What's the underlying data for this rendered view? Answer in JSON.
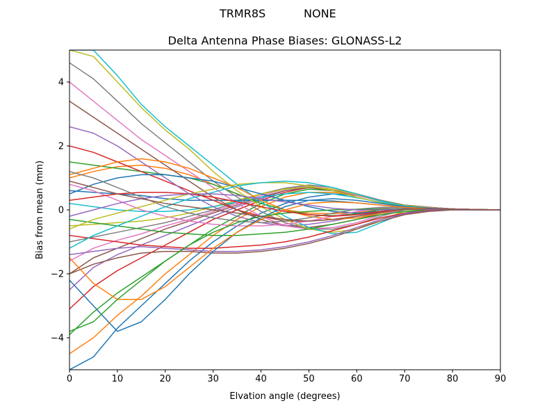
{
  "header": {
    "station": "TRMR8S",
    "radome": "NONE"
  },
  "chart_data": {
    "type": "line",
    "title": "Delta Antenna Phase Biases: GLONASS-L2",
    "xlabel": "Elvation angle (degrees)",
    "ylabel": "Bias from mean (mm)",
    "xlim": [
      0,
      90
    ],
    "ylim": [
      -5,
      5
    ],
    "xticks": [
      "0",
      "10",
      "20",
      "30",
      "40",
      "50",
      "60",
      "70",
      "80",
      "90"
    ],
    "yticks": [
      "−4",
      "−2",
      "0",
      "2",
      "4"
    ],
    "grid": false,
    "legend": "none",
    "colors": [
      "#1f77b4",
      "#ff7f0e",
      "#2ca02c",
      "#d62728",
      "#9467bd",
      "#8c564b",
      "#e377c2",
      "#7f7f7f",
      "#bcbd22",
      "#17becf"
    ],
    "x": [
      0,
      5,
      10,
      15,
      20,
      25,
      30,
      35,
      40,
      45,
      50,
      55,
      60,
      65,
      70,
      75,
      80,
      85,
      90
    ],
    "series": [
      {
        "values": [
          -5.0,
          -4.6,
          -3.7,
          -3.0,
          -2.3,
          -1.6,
          -1.0,
          -0.5,
          -0.1,
          0.2,
          0.4,
          0.5,
          0.45,
          0.3,
          0.15,
          0.08,
          0.03,
          0.01,
          0.0
        ]
      },
      {
        "values": [
          -4.5,
          -4.0,
          -3.3,
          -2.7,
          -2.0,
          -1.4,
          -0.8,
          -0.3,
          0.1,
          0.4,
          0.55,
          0.55,
          0.45,
          0.3,
          0.15,
          0.08,
          0.03,
          0.01,
          0.0
        ]
      },
      {
        "values": [
          -3.9,
          -3.2,
          -2.6,
          -2.1,
          -1.6,
          -1.1,
          -0.6,
          -0.2,
          0.2,
          0.5,
          0.65,
          0.6,
          0.5,
          0.3,
          0.15,
          0.08,
          0.03,
          0.01,
          0.0
        ]
      },
      {
        "values": [
          -3.1,
          -2.4,
          -1.9,
          -1.5,
          -1.1,
          -0.7,
          -0.3,
          0.0,
          0.3,
          0.55,
          0.7,
          0.65,
          0.5,
          0.3,
          0.15,
          0.08,
          0.03,
          0.01,
          0.0
        ]
      },
      {
        "values": [
          -2.5,
          -1.8,
          -1.4,
          -1.1,
          -0.8,
          -0.5,
          -0.2,
          0.1,
          0.35,
          0.6,
          0.7,
          0.6,
          0.45,
          0.28,
          0.14,
          0.07,
          0.03,
          0.01,
          0.0
        ]
      },
      {
        "values": [
          -2.0,
          -1.5,
          -1.2,
          -0.9,
          -0.6,
          -0.35,
          -0.1,
          0.15,
          0.4,
          0.6,
          0.7,
          0.6,
          0.45,
          0.28,
          0.14,
          0.07,
          0.03,
          0.01,
          0.0
        ]
      },
      {
        "values": [
          -1.6,
          -1.2,
          -0.95,
          -0.75,
          -0.5,
          -0.3,
          -0.05,
          0.2,
          0.45,
          0.65,
          0.75,
          0.65,
          0.45,
          0.28,
          0.14,
          0.07,
          0.03,
          0.01,
          0.0
        ]
      },
      {
        "values": [
          -1.0,
          -0.85,
          -0.7,
          -0.55,
          -0.4,
          -0.2,
          0.0,
          0.25,
          0.5,
          0.68,
          0.78,
          0.7,
          0.5,
          0.3,
          0.15,
          0.07,
          0.03,
          0.01,
          0.0
        ]
      },
      {
        "values": [
          -0.5,
          -0.45,
          -0.4,
          -0.35,
          -0.25,
          -0.1,
          0.1,
          0.3,
          0.5,
          0.65,
          0.72,
          0.65,
          0.48,
          0.28,
          0.14,
          0.07,
          0.03,
          0.01,
          0.0
        ]
      },
      {
        "values": [
          0.2,
          0.1,
          0.0,
          -0.05,
          -0.05,
          0.0,
          0.1,
          0.25,
          0.4,
          0.5,
          0.55,
          0.5,
          0.38,
          0.24,
          0.12,
          0.06,
          0.03,
          0.01,
          0.0
        ]
      },
      {
        "values": [
          0.6,
          0.55,
          0.5,
          0.45,
          0.35,
          0.3,
          0.3,
          0.3,
          0.3,
          0.3,
          0.3,
          0.28,
          0.22,
          0.15,
          0.08,
          0.04,
          0.02,
          0.01,
          0.0
        ]
      },
      {
        "values": [
          1.0,
          1.2,
          1.35,
          1.4,
          1.3,
          1.1,
          0.8,
          0.5,
          0.2,
          0.0,
          -0.1,
          -0.12,
          -0.08,
          0.0,
          0.05,
          0.05,
          0.03,
          0.01,
          0.0
        ]
      },
      {
        "values": [
          1.5,
          1.4,
          1.3,
          1.2,
          1.1,
          1.0,
          0.8,
          0.5,
          0.2,
          0.0,
          -0.15,
          -0.18,
          -0.12,
          0.0,
          0.05,
          0.05,
          0.03,
          0.01,
          0.0
        ]
      },
      {
        "values": [
          2.0,
          1.8,
          1.5,
          1.2,
          0.9,
          0.6,
          0.3,
          0.0,
          -0.2,
          -0.35,
          -0.35,
          -0.3,
          -0.2,
          -0.05,
          0.05,
          0.05,
          0.03,
          0.01,
          0.0
        ]
      },
      {
        "values": [
          2.6,
          2.4,
          2.0,
          1.5,
          1.0,
          0.5,
          0.1,
          -0.2,
          -0.4,
          -0.5,
          -0.45,
          -0.35,
          -0.2,
          -0.05,
          0.05,
          0.05,
          0.03,
          0.01,
          0.0
        ]
      },
      {
        "values": [
          3.4,
          2.9,
          2.4,
          1.9,
          1.4,
          0.9,
          0.4,
          0.0,
          -0.3,
          -0.5,
          -0.55,
          -0.45,
          -0.3,
          -0.1,
          0.03,
          0.05,
          0.03,
          0.01,
          0.0
        ]
      },
      {
        "values": [
          4.0,
          3.4,
          2.8,
          2.2,
          1.7,
          1.2,
          0.7,
          0.2,
          -0.2,
          -0.5,
          -0.6,
          -0.55,
          -0.4,
          -0.15,
          0.02,
          0.05,
          0.03,
          0.01,
          0.0
        ]
      },
      {
        "values": [
          4.6,
          4.1,
          3.4,
          2.7,
          2.1,
          1.5,
          0.9,
          0.4,
          -0.05,
          -0.4,
          -0.6,
          -0.6,
          -0.45,
          -0.2,
          0.0,
          0.05,
          0.03,
          0.01,
          0.0
        ]
      },
      {
        "values": [
          5.0,
          4.8,
          4.0,
          3.2,
          2.5,
          1.9,
          1.2,
          0.6,
          0.1,
          -0.3,
          -0.6,
          -0.7,
          -0.6,
          -0.3,
          -0.05,
          0.04,
          0.03,
          0.01,
          0.0
        ]
      },
      {
        "values": [
          5.0,
          5.0,
          4.2,
          3.3,
          2.6,
          2.0,
          1.4,
          0.8,
          0.25,
          -0.2,
          -0.55,
          -0.75,
          -0.7,
          -0.4,
          -0.1,
          0.03,
          0.03,
          0.01,
          0.0
        ]
      },
      {
        "values": [
          0.5,
          0.8,
          1.0,
          1.1,
          1.1,
          1.0,
          0.9,
          0.7,
          0.5,
          0.3,
          0.1,
          -0.05,
          -0.1,
          -0.05,
          0.03,
          0.04,
          0.03,
          0.01,
          0.0
        ]
      },
      {
        "values": [
          1.1,
          1.3,
          1.5,
          1.6,
          1.5,
          1.3,
          1.0,
          0.7,
          0.3,
          0.0,
          -0.2,
          -0.3,
          -0.25,
          -0.1,
          0.02,
          0.05,
          0.03,
          0.01,
          0.0
        ]
      },
      {
        "values": [
          -0.3,
          -0.4,
          -0.5,
          -0.6,
          -0.7,
          -0.75,
          -0.8,
          -0.8,
          -0.75,
          -0.7,
          -0.6,
          -0.45,
          -0.3,
          -0.15,
          -0.05,
          0.0,
          0.01,
          0.0,
          0.0
        ]
      },
      {
        "values": [
          -0.8,
          -0.9,
          -1.0,
          -1.1,
          -1.15,
          -1.2,
          -1.2,
          -1.15,
          -1.1,
          -1.0,
          -0.85,
          -0.65,
          -0.45,
          -0.25,
          -0.1,
          -0.02,
          0.0,
          0.0,
          0.0
        ]
      },
      {
        "values": [
          -1.4,
          -1.3,
          -1.2,
          -1.15,
          -1.2,
          -1.25,
          -1.3,
          -1.3,
          -1.25,
          -1.15,
          -1.0,
          -0.8,
          -0.55,
          -0.3,
          -0.12,
          -0.03,
          0.0,
          0.0,
          0.0
        ]
      },
      {
        "values": [
          -2.0,
          -1.7,
          -1.5,
          -1.35,
          -1.3,
          -1.3,
          -1.35,
          -1.35,
          -1.3,
          -1.2,
          -1.05,
          -0.85,
          -0.6,
          -0.35,
          -0.15,
          -0.05,
          0.0,
          0.0,
          0.0
        ]
      },
      {
        "values": [
          0.8,
          0.6,
          0.3,
          0.0,
          -0.2,
          -0.35,
          -0.45,
          -0.5,
          -0.5,
          -0.45,
          -0.35,
          -0.2,
          -0.05,
          0.05,
          0.08,
          0.06,
          0.03,
          0.01,
          0.0
        ]
      },
      {
        "values": [
          1.2,
          1.0,
          0.7,
          0.4,
          0.1,
          -0.1,
          -0.25,
          -0.35,
          -0.4,
          -0.35,
          -0.25,
          -0.1,
          0.02,
          0.08,
          0.08,
          0.06,
          0.03,
          0.01,
          0.0
        ]
      },
      {
        "values": [
          -0.6,
          -0.3,
          -0.1,
          0.1,
          0.3,
          0.5,
          0.65,
          0.8,
          0.85,
          0.85,
          0.75,
          0.6,
          0.4,
          0.22,
          0.1,
          0.04,
          0.02,
          0.01,
          0.0
        ]
      },
      {
        "values": [
          -1.2,
          -0.8,
          -0.5,
          -0.2,
          0.1,
          0.35,
          0.55,
          0.75,
          0.85,
          0.9,
          0.85,
          0.7,
          0.5,
          0.28,
          0.12,
          0.05,
          0.02,
          0.01,
          0.0
        ]
      },
      {
        "values": [
          -2.2,
          -3.0,
          -3.8,
          -3.5,
          -2.8,
          -2.0,
          -1.3,
          -0.7,
          -0.25,
          0.1,
          0.3,
          0.35,
          0.3,
          0.2,
          0.1,
          0.05,
          0.02,
          0.01,
          0.0
        ]
      },
      {
        "values": [
          -1.5,
          -2.3,
          -2.8,
          -2.8,
          -2.4,
          -1.8,
          -1.2,
          -0.7,
          -0.3,
          0.0,
          0.2,
          0.25,
          0.22,
          0.15,
          0.08,
          0.04,
          0.02,
          0.01,
          0.0
        ]
      },
      {
        "values": [
          -3.8,
          -3.5,
          -2.8,
          -2.2,
          -1.6,
          -1.1,
          -0.7,
          -0.4,
          -0.2,
          -0.1,
          -0.05,
          0.0,
          0.02,
          0.03,
          0.03,
          0.02,
          0.01,
          0.0,
          0.0
        ]
      },
      {
        "values": [
          0.3,
          0.4,
          0.5,
          0.55,
          0.55,
          0.5,
          0.4,
          0.25,
          0.1,
          -0.05,
          -0.15,
          -0.2,
          -0.15,
          -0.05,
          0.02,
          0.03,
          0.02,
          0.01,
          0.0
        ]
      },
      {
        "values": [
          -0.2,
          0.0,
          0.2,
          0.35,
          0.45,
          0.5,
          0.5,
          0.45,
          0.35,
          0.25,
          0.15,
          0.05,
          0.0,
          0.0,
          0.02,
          0.02,
          0.01,
          0.0,
          0.0
        ]
      },
      {
        "values": [
          0.9,
          0.7,
          0.5,
          0.35,
          0.2,
          0.1,
          0.0,
          -0.1,
          -0.2,
          -0.3,
          -0.35,
          -0.3,
          -0.2,
          -0.08,
          0.02,
          0.04,
          0.02,
          0.01,
          0.0
        ]
      }
    ]
  }
}
